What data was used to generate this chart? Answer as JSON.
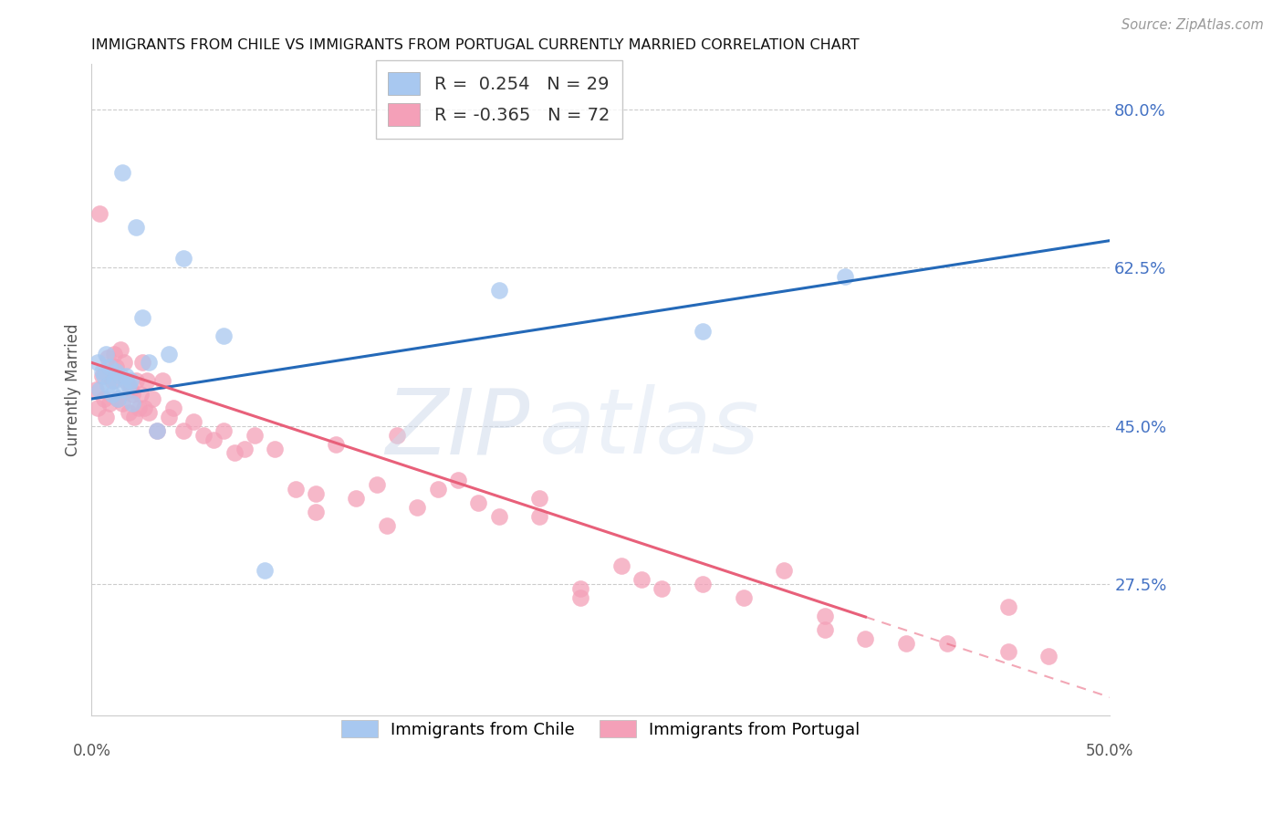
{
  "title": "IMMIGRANTS FROM CHILE VS IMMIGRANTS FROM PORTUGAL CURRENTLY MARRIED CORRELATION CHART",
  "source": "Source: ZipAtlas.com",
  "ylabel": "Currently Married",
  "right_yticks": [
    80.0,
    62.5,
    45.0,
    27.5
  ],
  "xlim": [
    0.0,
    50.0
  ],
  "ylim": [
    13.0,
    85.0
  ],
  "chile_R": 0.254,
  "chile_N": 29,
  "portugal_R": -0.365,
  "portugal_N": 72,
  "chile_color": "#a8c8f0",
  "portugal_color": "#f4a0b8",
  "chile_line_color": "#2469b8",
  "portugal_line_color": "#e8607a",
  "watermark_zip": "ZIP",
  "watermark_atlas": "atlas",
  "chile_line_x0": 0.0,
  "chile_line_y0": 48.0,
  "chile_line_x1": 50.0,
  "chile_line_y1": 65.5,
  "portugal_line_x0": 0.0,
  "portugal_line_y0": 52.0,
  "portugal_line_x1": 50.0,
  "portugal_line_y1": 15.0,
  "portugal_solid_end_x": 38.0,
  "chile_scatter_x": [
    1.5,
    2.2,
    2.5,
    3.8,
    4.5,
    0.3,
    0.4,
    0.5,
    0.6,
    0.7,
    0.8,
    0.9,
    1.0,
    1.1,
    1.2,
    1.3,
    1.4,
    1.6,
    1.7,
    1.8,
    1.9,
    2.0,
    2.8,
    3.2,
    6.5,
    8.5,
    20.0,
    30.0,
    37.0
  ],
  "chile_scatter_y": [
    73.0,
    67.0,
    57.0,
    53.0,
    63.5,
    52.0,
    49.0,
    51.0,
    50.5,
    53.0,
    49.5,
    51.5,
    48.5,
    50.0,
    51.0,
    48.0,
    50.5,
    49.0,
    50.5,
    49.5,
    50.0,
    47.5,
    52.0,
    44.5,
    55.0,
    29.0,
    60.0,
    55.5,
    61.5
  ],
  "portugal_scatter_x": [
    0.2,
    0.3,
    0.4,
    0.5,
    0.6,
    0.7,
    0.8,
    0.9,
    1.0,
    1.1,
    1.2,
    1.3,
    1.4,
    1.5,
    1.6,
    1.7,
    1.8,
    1.9,
    2.0,
    2.1,
    2.2,
    2.3,
    2.4,
    2.5,
    2.6,
    2.7,
    2.8,
    3.0,
    3.2,
    3.5,
    3.8,
    4.0,
    4.5,
    5.0,
    5.5,
    6.0,
    6.5,
    7.0,
    7.5,
    8.0,
    9.0,
    10.0,
    11.0,
    12.0,
    13.0,
    14.0,
    15.0,
    16.0,
    17.0,
    18.0,
    19.0,
    20.0,
    22.0,
    24.0,
    26.0,
    28.0,
    30.0,
    32.0,
    34.0,
    36.0,
    38.0,
    40.0,
    42.0,
    45.0,
    47.0,
    11.0,
    14.5,
    22.0,
    24.0,
    27.0,
    36.0,
    45.0
  ],
  "portugal_scatter_y": [
    49.0,
    47.0,
    68.5,
    50.5,
    48.0,
    46.0,
    52.5,
    47.5,
    50.0,
    53.0,
    51.5,
    48.0,
    53.5,
    47.5,
    52.0,
    50.0,
    46.5,
    49.0,
    48.5,
    46.0,
    50.0,
    47.0,
    48.5,
    52.0,
    47.0,
    50.0,
    46.5,
    48.0,
    44.5,
    50.0,
    46.0,
    47.0,
    44.5,
    45.5,
    44.0,
    43.5,
    44.5,
    42.0,
    42.5,
    44.0,
    42.5,
    38.0,
    37.5,
    43.0,
    37.0,
    38.5,
    44.0,
    36.0,
    38.0,
    39.0,
    36.5,
    35.0,
    37.0,
    27.0,
    29.5,
    27.0,
    27.5,
    26.0,
    29.0,
    24.0,
    21.5,
    21.0,
    21.0,
    20.0,
    19.5,
    35.5,
    34.0,
    35.0,
    26.0,
    28.0,
    22.5,
    25.0
  ]
}
